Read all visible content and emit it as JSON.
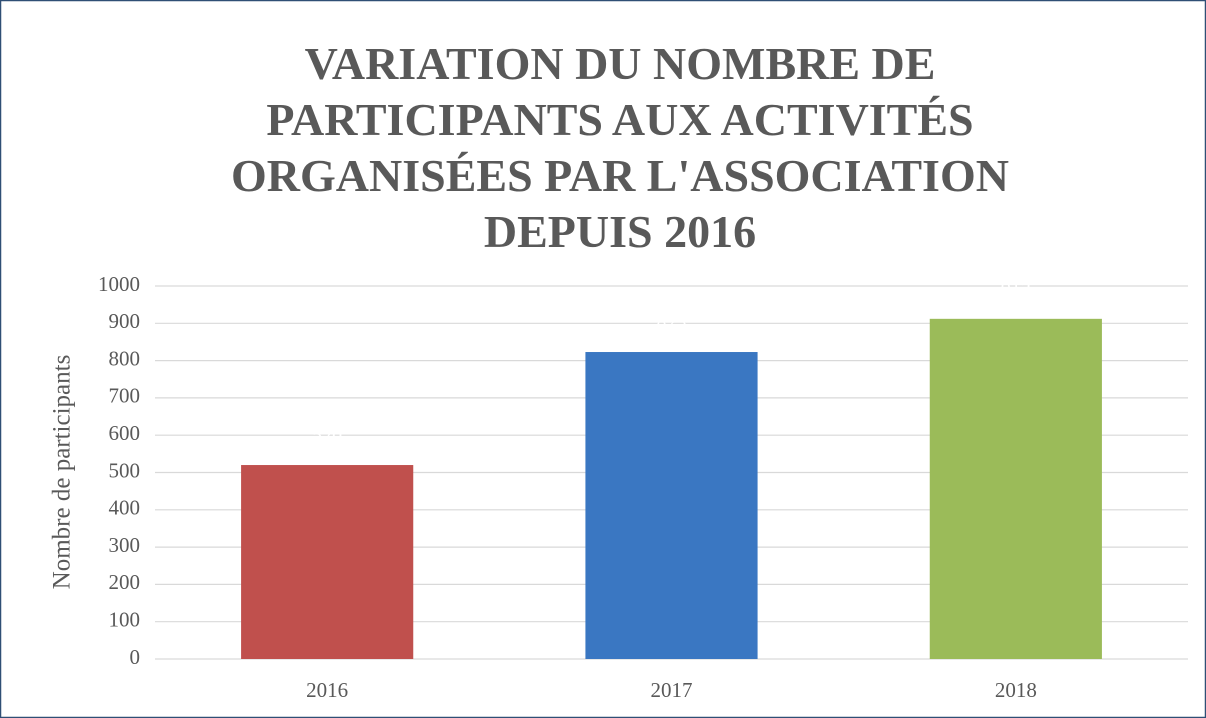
{
  "chart_data": {
    "type": "bar",
    "title": "VARIATION DU NOMBRE DE PARTICIPANTS AUX ACTIVITÉS ORGANISÉES PAR L'ASSOCIATION DEPUIS 2016",
    "y_label": "Nombre de participants",
    "categories": [
      "2016",
      "2017",
      "2018"
    ],
    "values": [
      520,
      823,
      912
    ],
    "colors": [
      "#c0504d",
      "#3a77c2",
      "#9bbb59"
    ],
    "ylim": [
      0,
      1000
    ],
    "yticks": [
      0,
      100,
      200,
      300,
      400,
      500,
      600,
      700,
      800,
      900,
      1000
    ],
    "grid": true
  }
}
